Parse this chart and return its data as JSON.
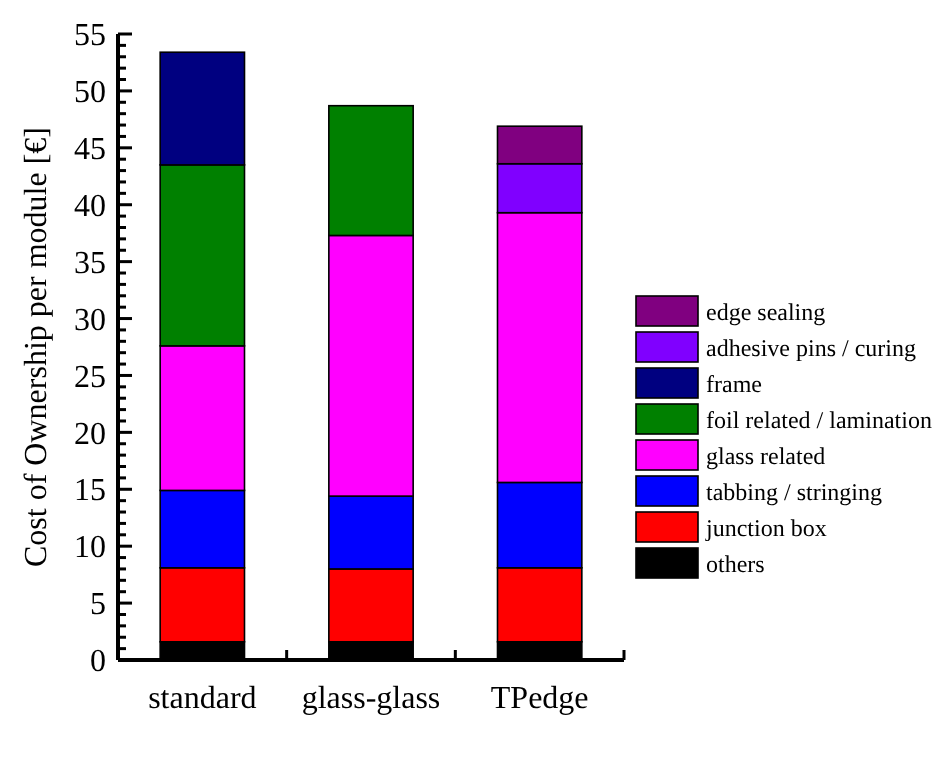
{
  "chart_data": {
    "type": "bar",
    "stacked": true,
    "ylabel": "Cost of Ownership per module [€]",
    "categories": [
      "standard",
      "glass-glass",
      "TPedge"
    ],
    "ylim": [
      0,
      55
    ],
    "yticks": [
      0,
      {
        "value": 1,
        "label": null
      },
      {
        "value": 2,
        "label": null
      },
      {
        "value": 3,
        "label": null
      },
      {
        "value": 4,
        "label": null
      },
      5,
      {
        "value": 6,
        "label": null
      },
      {
        "value": 7,
        "label": null
      },
      {
        "value": 8,
        "label": null
      },
      {
        "value": 9,
        "label": null
      },
      10,
      {
        "value": 11,
        "label": null
      },
      {
        "value": 12,
        "label": null
      },
      {
        "value": 13,
        "label": null
      },
      {
        "value": 14,
        "label": null
      },
      15,
      {
        "value": 16,
        "label": null
      },
      {
        "value": 17,
        "label": null
      },
      {
        "value": 18,
        "label": null
      },
      {
        "value": 19,
        "label": null
      },
      20,
      {
        "value": 21,
        "label": null
      },
      {
        "value": 22,
        "label": null
      },
      {
        "value": 23,
        "label": null
      },
      {
        "value": 24,
        "label": null
      },
      25,
      {
        "value": 26,
        "label": null
      },
      {
        "value": 27,
        "label": null
      },
      {
        "value": 28,
        "label": null
      },
      {
        "value": 29,
        "label": null
      },
      30,
      {
        "value": 31,
        "label": null
      },
      {
        "value": 32,
        "label": null
      },
      {
        "value": 33,
        "label": null
      },
      {
        "value": 34,
        "label": null
      },
      35,
      {
        "value": 36,
        "label": null
      },
      {
        "value": 37,
        "label": null
      },
      {
        "value": 38,
        "label": null
      },
      {
        "value": 39,
        "label": null
      },
      40,
      {
        "value": 41,
        "label": null
      },
      {
        "value": 42,
        "label": null
      },
      {
        "value": 43,
        "label": null
      },
      {
        "value": 44,
        "label": null
      },
      45,
      {
        "value": 46,
        "label": null
      },
      {
        "value": 47,
        "label": null
      },
      {
        "value": 48,
        "label": null
      },
      {
        "value": 49,
        "label": null
      },
      50,
      {
        "value": 51,
        "label": null
      },
      {
        "value": 52,
        "label": null
      },
      {
        "value": 53,
        "label": null
      },
      {
        "value": 54,
        "label": null
      },
      55
    ],
    "grid": false,
    "legend": "right",
    "series": [
      {
        "name": "others",
        "color": "#000000",
        "values": [
          1.6,
          1.6,
          1.6
        ]
      },
      {
        "name": "junction box",
        "color": "#ff0000",
        "values": [
          6.5,
          6.4,
          6.5
        ]
      },
      {
        "name": "tabbing / stringing",
        "color": "#0000ff",
        "values": [
          6.8,
          6.4,
          7.5
        ]
      },
      {
        "name": "glass related",
        "color": "#ff00ff",
        "values": [
          12.7,
          22.9,
          23.7
        ]
      },
      {
        "name": "foil related / lamination",
        "color": "#008000",
        "values": [
          15.9,
          11.4,
          null
        ]
      },
      {
        "name": "frame",
        "color": "#000080",
        "values": [
          9.9,
          null,
          null
        ]
      },
      {
        "name": "adhesive pins / curing",
        "color": "#8000ff",
        "values": [
          null,
          null,
          4.3
        ]
      },
      {
        "name": "edge sealing",
        "color": "#800080",
        "values": [
          null,
          null,
          3.3
        ]
      }
    ]
  }
}
